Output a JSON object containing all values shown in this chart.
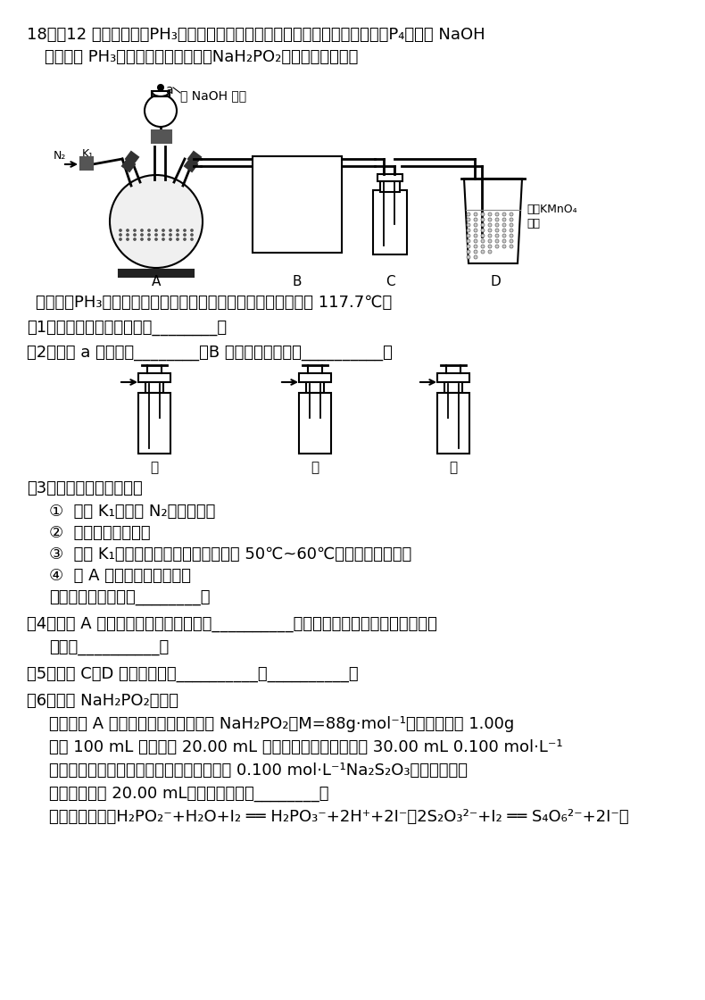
{
  "bg_color": "#ffffff",
  "text_color": "#000000",
  "title_line1": "18．（12 分）磷化氢（PH₃）常用于有机合成、粮仓杀虫等。实验室用白磷（P₄）与浓 NaOH",
  "title_line2": "加热制备 PH₃，同时得到次磷酸钠（NaH₂PO₂），装置如下图。",
  "known_info": "（已知：PH₃是无色有毒气体，有强还原性，易自燃；丁醇沸点 117.7℃）",
  "q1": "（1）实验室少量白磷保存于________。",
  "q2": "（2）仪器 a 的名称为________，B 应选用下图中装置__________。",
  "q3_header": "（3）实验操作步骤如下：",
  "q3_1": "①  打开 K₁，通入 N₂一段时间；",
  "q3_2": "②  检查装置气密性；",
  "q3_3": "③  关闭 K₁，打开磁力加热搅拌器加热至 50℃~60℃，滴加烧碱溶液；",
  "q3_4": "④  在 A 中加入丁醇和白磷。",
  "q3_answer": "则正确的操作顺序是________。",
  "q4_line1": "（4）装置 A 中发生反应的化学方程式为__________，使用丁醇作为反应物的分散剂，",
  "q4_line2": "目的是__________。",
  "q5": "（5）装置 C、D 的作用分别是__________、__________。",
  "q6_header": "（6）测定 NaH₂PO₂纯度。",
  "q6_line1": "分离提纯 A 中反应后的混合物，得到 NaH₂PO₂（M=88g·mol⁻¹）粗品，并取 1.00g",
  "q6_line2": "配成 100 mL 溶液。取 20.00 mL 于锥形瓶中，酸化后加入 30.00 mL 0.100 mol·L⁻¹",
  "q6_line3": "碘水，充分反应，以淀粉溶液作指示剂，用 0.100 mol·L⁻¹Na₂S₂O₃溶液滴定至终",
  "q6_line4": "点，平均消耗 20.00 mL。则产品纯度为________。",
  "q6_eq": "（相关反应为：H₂PO₂⁻+H₂O+I₂ ══ H₂PO₃⁻+2H⁺+2I⁻，2S₂O₃²⁻+I₂ ══ S₄O₆²⁻+2I⁻）"
}
